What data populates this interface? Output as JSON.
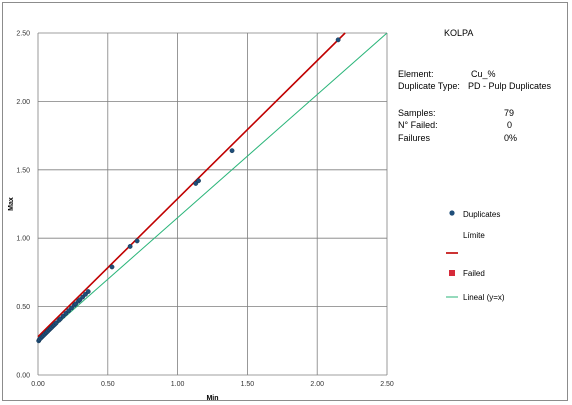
{
  "chart_data": {
    "type": "scatter",
    "title": "KOLPA",
    "xlabel": "Min",
    "ylabel": "Max",
    "xlim": [
      0,
      2.5
    ],
    "ylim": [
      0,
      2.5
    ],
    "xticks": [
      "0.00",
      "0.50",
      "1.00",
      "1.50",
      "2.00",
      "2.50"
    ],
    "yticks": [
      "0.00",
      "0.50",
      "1.00",
      "1.50",
      "2.00",
      "2.50"
    ],
    "grid": true,
    "legend_position": "right",
    "series": [
      {
        "name": "Duplicates",
        "kind": "points",
        "color": "#1f4e79",
        "x": [
          0.005,
          0.01,
          0.02,
          0.03,
          0.04,
          0.05,
          0.06,
          0.07,
          0.08,
          0.09,
          0.1,
          0.11,
          0.12,
          0.13,
          0.15,
          0.16,
          0.18,
          0.2,
          0.22,
          0.24,
          0.26,
          0.27,
          0.29,
          0.3,
          0.32,
          0.34,
          0.36,
          0.53,
          0.66,
          0.71,
          1.13,
          1.15,
          1.39,
          2.15
        ],
        "y": [
          0.25,
          0.26,
          0.27,
          0.28,
          0.29,
          0.3,
          0.31,
          0.32,
          0.33,
          0.34,
          0.35,
          0.36,
          0.37,
          0.38,
          0.4,
          0.41,
          0.43,
          0.45,
          0.47,
          0.49,
          0.51,
          0.52,
          0.54,
          0.55,
          0.57,
          0.59,
          0.61,
          0.79,
          0.94,
          0.98,
          1.4,
          1.42,
          1.64,
          2.45
        ]
      },
      {
        "name": "Límite",
        "kind": "line",
        "color": "#c00000",
        "x": [
          0.0,
          2.2
        ],
        "y": [
          0.28,
          2.5
        ]
      },
      {
        "name": "Failed",
        "kind": "points",
        "color": "#d62a3a",
        "x": [],
        "y": []
      },
      {
        "name": "Lineal (y=x)",
        "kind": "line",
        "color": "#2bb57a",
        "x": [
          0.0,
          2.5
        ],
        "y": [
          0.25,
          2.5
        ]
      }
    ]
  },
  "info": {
    "element_label": "Element:",
    "element_value": "Cu_%",
    "dup_type_label": "Duplicate Type:",
    "dup_type_value": "PD - Pulp Duplicates",
    "samples_label": "Samples:",
    "samples_value": "79",
    "failed_label": "N° Failed:",
    "failed_value": "0",
    "failures_label": "Failures",
    "failures_value": "0%"
  }
}
